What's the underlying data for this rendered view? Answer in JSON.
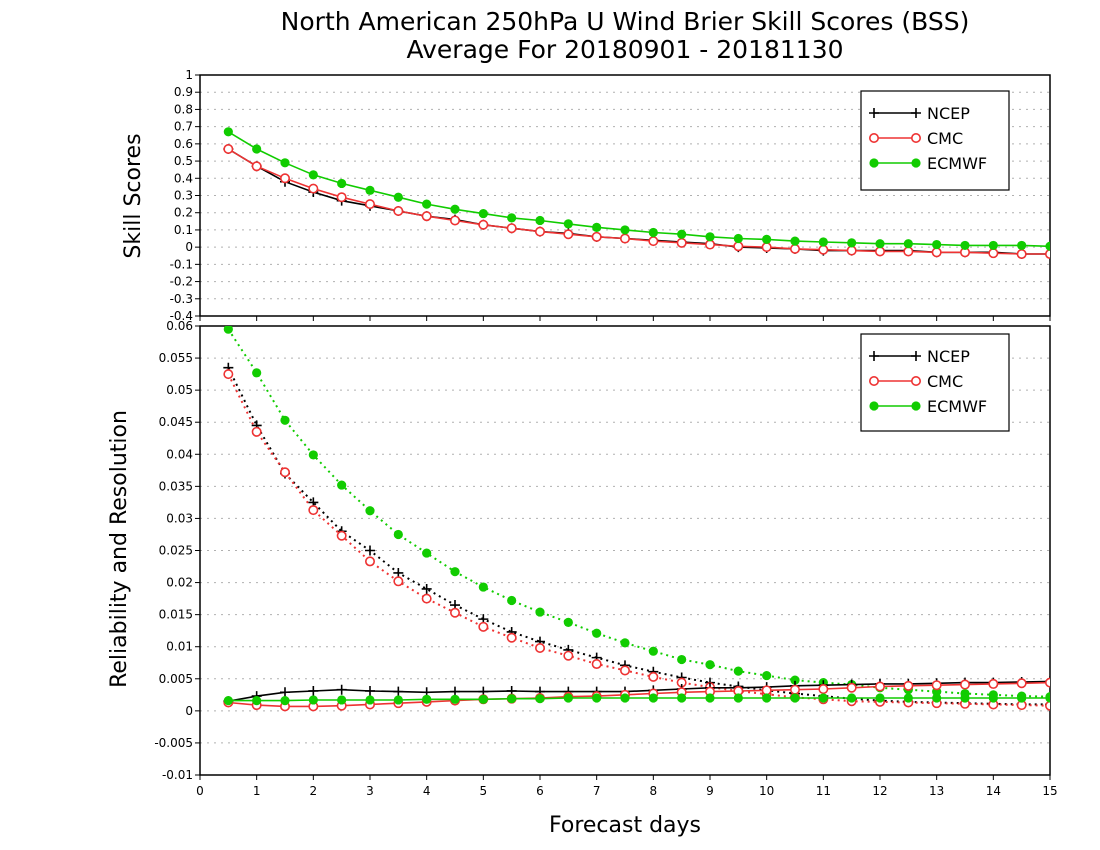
{
  "title_line1": "North American 250hPa U Wind Brier Skill Scores (BSS)",
  "title_line2": "Average For 20180901 - 20181130",
  "xlabel": "Forecast days",
  "colors": {
    "NCEP": "#000000",
    "CMC": "#ee3333",
    "ECMWF": "#11cc00"
  },
  "chart_data": [
    {
      "type": "line",
      "ylabel": "Skill Scores",
      "xlim": [
        0,
        15
      ],
      "ylim": [
        -0.4,
        1
      ],
      "grid": "horizontal dotted",
      "legend_position": "top-right",
      "xticks": [
        0,
        1,
        2,
        3,
        4,
        5,
        6,
        7,
        8,
        9,
        10,
        11,
        12,
        13,
        14,
        15
      ],
      "yticks": [
        -0.4,
        -0.3,
        -0.2,
        -0.1,
        0,
        0.1,
        0.2,
        0.3,
        0.4,
        0.5,
        0.6,
        0.7,
        0.8,
        0.9,
        1
      ],
      "ytick_labels": [
        "-0.4",
        "-0.3",
        "-0.2",
        "-0.1",
        "0",
        "0.1",
        "0.2",
        "0.3",
        "0.4",
        "0.5",
        "0.6",
        "0.7",
        "0.8",
        "0.9",
        "1"
      ],
      "x": [
        0.5,
        1,
        1.5,
        2,
        2.5,
        3,
        3.5,
        4,
        4.5,
        5,
        5.5,
        6,
        6.5,
        7,
        7.5,
        8,
        8.5,
        9,
        9.5,
        10,
        10.5,
        11,
        11.5,
        12,
        12.5,
        13,
        13.5,
        14,
        14.5,
        15
      ],
      "series": [
        {
          "name": "NCEP",
          "marker": "plus",
          "line": "solid",
          "values": [
            0.57,
            0.47,
            0.38,
            0.32,
            0.27,
            0.24,
            0.21,
            0.18,
            0.16,
            0.13,
            0.11,
            0.09,
            0.08,
            0.06,
            0.05,
            0.04,
            0.03,
            0.02,
            0.0,
            -0.005,
            -0.01,
            -0.02,
            -0.02,
            -0.02,
            -0.02,
            -0.03,
            -0.03,
            -0.03,
            -0.04,
            -0.04
          ]
        },
        {
          "name": "CMC",
          "marker": "open-circle",
          "line": "solid",
          "values": [
            0.57,
            0.47,
            0.4,
            0.34,
            0.29,
            0.25,
            0.21,
            0.18,
            0.155,
            0.13,
            0.11,
            0.09,
            0.075,
            0.06,
            0.05,
            0.035,
            0.025,
            0.015,
            0.005,
            0.0,
            -0.01,
            -0.015,
            -0.02,
            -0.025,
            -0.025,
            -0.03,
            -0.03,
            -0.035,
            -0.04,
            -0.04
          ]
        },
        {
          "name": "ECMWF",
          "marker": "filled-circle",
          "line": "solid",
          "values": [
            0.67,
            0.57,
            0.49,
            0.42,
            0.37,
            0.33,
            0.29,
            0.25,
            0.22,
            0.195,
            0.17,
            0.155,
            0.135,
            0.115,
            0.1,
            0.085,
            0.075,
            0.06,
            0.05,
            0.045,
            0.035,
            0.03,
            0.025,
            0.02,
            0.02,
            0.015,
            0.01,
            0.01,
            0.01,
            0.005
          ]
        }
      ]
    },
    {
      "type": "line",
      "ylabel": "Reliability and Resolution",
      "xlim": [
        0,
        15
      ],
      "ylim": [
        -0.01,
        0.06
      ],
      "grid": "horizontal dotted",
      "legend_position": "top-right",
      "xticks": [
        0,
        1,
        2,
        3,
        4,
        5,
        6,
        7,
        8,
        9,
        10,
        11,
        12,
        13,
        14,
        15
      ],
      "yticks": [
        -0.01,
        -0.005,
        0,
        0.005,
        0.01,
        0.015,
        0.02,
        0.025,
        0.03,
        0.035,
        0.04,
        0.045,
        0.05,
        0.055,
        0.06
      ],
      "ytick_labels": [
        "-0.01",
        "-0.005",
        "0",
        "0.005",
        "0.01",
        "0.015",
        "0.02",
        "0.025",
        "0.03",
        "0.035",
        "0.04",
        "0.045",
        "0.05",
        "0.055",
        "0.06"
      ],
      "x": [
        0.5,
        1,
        1.5,
        2,
        2.5,
        3,
        3.5,
        4,
        4.5,
        5,
        5.5,
        6,
        6.5,
        7,
        7.5,
        8,
        8.5,
        9,
        9.5,
        10,
        10.5,
        11,
        11.5,
        12,
        12.5,
        13,
        13.5,
        14,
        14.5,
        15
      ],
      "series": [
        {
          "name": "NCEP",
          "group": "resolution",
          "marker": "plus",
          "line": "dotted",
          "in_legend": false,
          "values": [
            0.0535,
            0.0445,
            0.037,
            0.0325,
            0.028,
            0.025,
            0.0215,
            0.019,
            0.0165,
            0.0143,
            0.0123,
            0.0108,
            0.0095,
            0.0083,
            0.0071,
            0.0061,
            0.0052,
            0.0044,
            0.0038,
            0.0032,
            0.0027,
            0.0023,
            0.0019,
            0.0016,
            0.0014,
            0.0013,
            0.0012,
            0.0011,
            0.001,
            0.001
          ]
        },
        {
          "name": "CMC",
          "group": "resolution",
          "marker": "open-circle",
          "line": "dotted",
          "in_legend": false,
          "values": [
            0.0525,
            0.0435,
            0.0372,
            0.0313,
            0.0273,
            0.0233,
            0.0202,
            0.0175,
            0.0153,
            0.0131,
            0.0114,
            0.0098,
            0.0086,
            0.0073,
            0.0063,
            0.0053,
            0.0044,
            0.0037,
            0.0031,
            0.0026,
            0.0021,
            0.0018,
            0.0015,
            0.0014,
            0.0013,
            0.0012,
            0.0011,
            0.001,
            0.0009,
            0.0008
          ]
        },
        {
          "name": "ECMWF",
          "group": "resolution",
          "marker": "filled-circle",
          "line": "dotted",
          "in_legend": false,
          "values": [
            0.0595,
            0.0527,
            0.0453,
            0.0399,
            0.0352,
            0.0312,
            0.0275,
            0.0246,
            0.0217,
            0.0193,
            0.0172,
            0.0154,
            0.0138,
            0.0121,
            0.0106,
            0.0093,
            0.008,
            0.0072,
            0.0062,
            0.0055,
            0.0048,
            0.0044,
            0.0041,
            0.0036,
            0.0033,
            0.003,
            0.0027,
            0.0025,
            0.0023,
            0.0022
          ]
        },
        {
          "name": "NCEP",
          "group": "reliability",
          "marker": "plus",
          "line": "solid",
          "values": [
            0.0015,
            0.0023,
            0.0029,
            0.0031,
            0.0033,
            0.0031,
            0.003,
            0.0029,
            0.003,
            0.003,
            0.0031,
            0.003,
            0.003,
            0.003,
            0.003,
            0.0032,
            0.0034,
            0.0036,
            0.0036,
            0.0037,
            0.0039,
            0.004,
            0.0041,
            0.0042,
            0.0042,
            0.0043,
            0.0044,
            0.0044,
            0.0045,
            0.0046
          ]
        },
        {
          "name": "CMC",
          "group": "reliability",
          "marker": "open-circle",
          "line": "solid",
          "values": [
            0.0013,
            0.0009,
            0.0007,
            0.0007,
            0.0008,
            0.001,
            0.0012,
            0.0014,
            0.0016,
            0.0018,
            0.0019,
            0.002,
            0.0022,
            0.0023,
            0.0025,
            0.0027,
            0.0029,
            0.003,
            0.0031,
            0.0032,
            0.0033,
            0.0034,
            0.0036,
            0.0038,
            0.0039,
            0.004,
            0.0041,
            0.0042,
            0.0043,
            0.0044
          ]
        },
        {
          "name": "ECMWF",
          "group": "reliability",
          "marker": "filled-circle",
          "line": "solid",
          "values": [
            0.0016,
            0.0016,
            0.0016,
            0.0017,
            0.0017,
            0.0017,
            0.0017,
            0.0018,
            0.0018,
            0.0018,
            0.0019,
            0.0019,
            0.002,
            0.002,
            0.002,
            0.002,
            0.002,
            0.002,
            0.002,
            0.002,
            0.002,
            0.002,
            0.002,
            0.002,
            0.002,
            0.002,
            0.002,
            0.002,
            0.002,
            0.002
          ]
        }
      ]
    }
  ]
}
